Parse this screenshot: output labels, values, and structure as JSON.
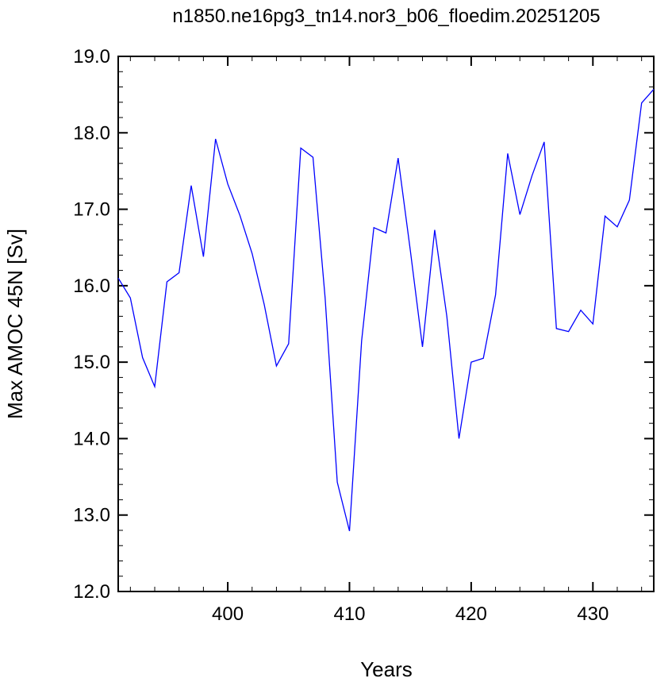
{
  "chart_data": {
    "type": "line",
    "title": "n1850.ne16pg3_tn14.nor3_b06_floedim.20251205",
    "xlabel": "Years",
    "ylabel": "Max AMOC 45N [Sv]",
    "xlim": [
      391,
      435
    ],
    "ylim": [
      12.0,
      19.0
    ],
    "xticks": [
      400,
      410,
      420,
      430
    ],
    "yticks": [
      "12.0",
      "13.0",
      "14.0",
      "15.0",
      "16.0",
      "17.0",
      "18.0",
      "19.0"
    ],
    "grid": false,
    "line_color": "#0000ff",
    "series": [
      {
        "x": [
          391,
          392,
          393,
          394,
          395,
          396,
          397,
          398,
          399,
          400,
          401,
          402,
          403,
          404,
          405,
          406,
          407,
          408,
          409,
          410,
          411,
          412,
          413,
          414,
          415,
          416,
          417,
          418,
          419,
          420,
          421,
          422,
          423,
          424,
          425,
          426,
          427,
          428,
          429,
          430,
          431,
          432,
          433,
          434,
          435
        ],
        "values": [
          16.1,
          15.84,
          15.06,
          14.68,
          16.05,
          16.17,
          17.31,
          16.38,
          17.92,
          17.33,
          16.92,
          16.42,
          15.75,
          14.95,
          15.24,
          17.8,
          17.68,
          15.84,
          13.43,
          12.79,
          15.28,
          16.76,
          16.69,
          17.67,
          16.46,
          15.2,
          16.73,
          15.6,
          14.0,
          15.0,
          15.05,
          15.88,
          17.73,
          16.93,
          17.44,
          17.88,
          15.44,
          15.4,
          15.68,
          15.5,
          16.91,
          16.77,
          17.12,
          18.39,
          18.57
        ]
      }
    ]
  }
}
